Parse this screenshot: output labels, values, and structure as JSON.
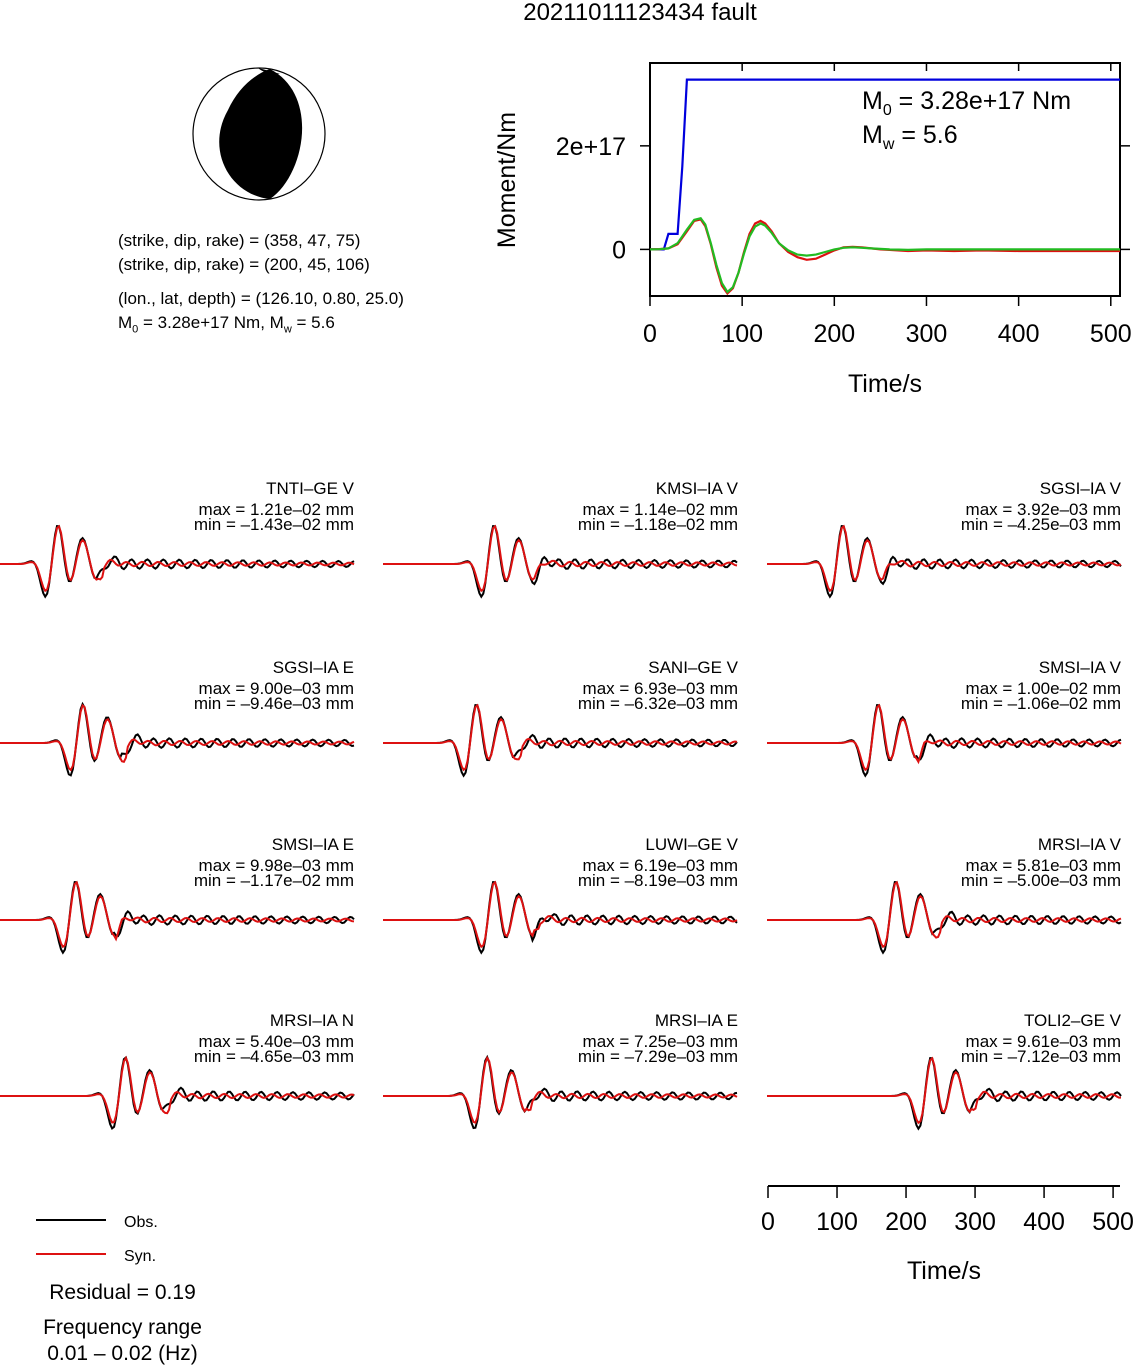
{
  "title": "20211011123434 fault",
  "mechanism": {
    "plane1": "(strike, dip, rake) = (358, 47, 75)",
    "plane2": "(strike, dip, rake) = (200, 45, 106)",
    "location": "(lon., lat, depth) = (126.10, 0.80, 25.0)",
    "moment_line": "M0 = 3.28e+17 Nm, Mw = 5.6",
    "m0_value": "3.28e+17 Nm",
    "mw_value": "5.6"
  },
  "chart_data": [
    {
      "type": "line",
      "ylabel": "Moment/Nm",
      "xlabel": "Time/s",
      "xlim": [
        0,
        510
      ],
      "ylim": [
        -9e+16,
        3.6e+17
      ],
      "xticks": [
        0,
        100,
        200,
        300,
        400,
        500
      ],
      "yticks": [
        {
          "value": 0,
          "label": "0"
        },
        {
          "value": 2e+17,
          "label": "2e+17"
        }
      ],
      "annotation_m0": "M0 = 3.28e+17 Nm",
      "annotation_mw": "Mw = 5.6",
      "series": [
        {
          "color": "#0000dd",
          "x": [
            0,
            15,
            20,
            30,
            35,
            40,
            510
          ],
          "y": [
            0,
            0,
            3e+16,
            3e+16,
            1.6e+17,
            3.28e+17,
            3.28e+17
          ]
        },
        {
          "color": "#dd1111",
          "x": [
            0,
            10,
            20,
            30,
            40,
            48,
            55,
            60,
            66,
            72,
            78,
            84,
            90,
            96,
            102,
            108,
            114,
            120,
            125,
            132,
            140,
            150,
            160,
            170,
            180,
            190,
            200,
            210,
            220,
            230,
            240,
            250,
            260,
            280,
            300,
            330,
            360,
            400,
            450,
            510
          ],
          "y": [
            0,
            500000000000000.0,
            2000000000000000.0,
            1e+16,
            3.5e+16,
            5.5e+16,
            5.8e+16,
            4.5e+16,
            1e+16,
            -3.5e+16,
            -7e+16,
            -8.5e+16,
            -7.5e+16,
            -4.5e+16,
            -5000000000000000.0,
            3e+16,
            5e+16,
            5.5e+16,
            5e+16,
            3.5e+16,
            1.2e+16,
            -5000000000000000.0,
            -1.5e+16,
            -2e+16,
            -1.8e+16,
            -1e+16,
            -2000000000000000.0,
            4000000000000000.0,
            5000000000000000.0,
            4000000000000000.0,
            2000000000000000.0,
            0.0,
            -1000000000000000.0,
            -3000000000000000.0,
            -2000000000000000.0,
            -3000000000000000.0,
            -2000000000000000.0,
            -3000000000000000.0,
            -3000000000000000.0,
            -3000000000000000.0
          ]
        },
        {
          "color": "#22bb22",
          "x": [
            0,
            10,
            20,
            30,
            40,
            48,
            55,
            60,
            66,
            72,
            78,
            84,
            90,
            96,
            102,
            108,
            114,
            120,
            125,
            132,
            140,
            150,
            160,
            170,
            180,
            190,
            200,
            210,
            220,
            230,
            240,
            250,
            260,
            280,
            300,
            330,
            360,
            400,
            450,
            510
          ],
          "y": [
            0,
            400000000000000.0,
            2000000000000000.0,
            1.2e+16,
            3.8e+16,
            5.7e+16,
            6e+16,
            4.8e+16,
            1.2e+16,
            -3e+16,
            -6.5e+16,
            -8.2e+16,
            -7.3e+16,
            -4.5e+16,
            -8000000000000000.0,
            2.5e+16,
            4.4e+16,
            5e+16,
            4.6e+16,
            3.2e+16,
            1.2e+16,
            -2000000000000000.0,
            -1e+16,
            -1.2e+16,
            -1e+16,
            -5000000000000000.0,
            0.0,
            3000000000000000.0,
            4000000000000000.0,
            3000000000000000.0,
            2000000000000000.0,
            1000000000000000.0,
            0.0,
            -1000000000000000.0,
            0.0,
            0.0,
            0.0,
            0.0,
            0.0,
            0.0
          ]
        }
      ]
    },
    {
      "type": "line",
      "xlabel": "Time/s",
      "xlim": [
        0,
        510
      ],
      "xticks": [
        0,
        100,
        200,
        300,
        400,
        500
      ],
      "legend_obs": "Obs.",
      "legend_syn": "Syn.",
      "legend_placement": "bottom-left",
      "residual": "Residual = 0.19",
      "freq_title": "Frequency range",
      "freq_value": "0.01 – 0.02 (Hz)",
      "traces": [
        {
          "name": "TNTI–GE V",
          "max": "max = 1.21e–02 mm",
          "min": "min = –1.43e–02 mm",
          "pos": 0.15
        },
        {
          "name": "KMSI–IA V",
          "max": "max = 1.14e–02 mm",
          "min": "min = –1.18e–02 mm",
          "pos": 0.3
        },
        {
          "name": "SGSI–IA V",
          "max": "max = 3.92e–03 mm",
          "min": "min = –4.25e–03 mm",
          "pos": 0.2
        },
        {
          "name": "SGSI–IA E",
          "max": "max = 9.00e–03 mm",
          "min": "min = –9.46e–03 mm",
          "pos": 0.22
        },
        {
          "name": "SANI–GE V",
          "max": "max = 6.93e–03 mm",
          "min": "min = –6.32e–03 mm",
          "pos": 0.25
        },
        {
          "name": "SMSI–IA V",
          "max": "max = 1.00e–02 mm",
          "min": "min = –1.06e–02 mm",
          "pos": 0.3
        },
        {
          "name": "SMSI–IA E",
          "max": "max = 9.98e–03 mm",
          "min": "min = –1.17e–02 mm",
          "pos": 0.2
        },
        {
          "name": "LUWI–GE V",
          "max": "max = 6.19e–03 mm",
          "min": "min = –8.19e–03 mm",
          "pos": 0.3
        },
        {
          "name": "MRSI–IA V",
          "max": "max = 5.81e–03 mm",
          "min": "min = –5.00e–03 mm",
          "pos": 0.35
        },
        {
          "name": "MRSI–IA N",
          "max": "max = 5.40e–03 mm",
          "min": "min = –4.65e–03 mm",
          "pos": 0.34
        },
        {
          "name": "MRSI–IA E",
          "max": "max = 7.25e–03 mm",
          "min": "min = –7.29e–03 mm",
          "pos": 0.28
        },
        {
          "name": "TOLI2–GE V",
          "max": "max = 9.61e–03 mm",
          "min": "min = –7.12e–03 mm",
          "pos": 0.45
        }
      ]
    }
  ]
}
